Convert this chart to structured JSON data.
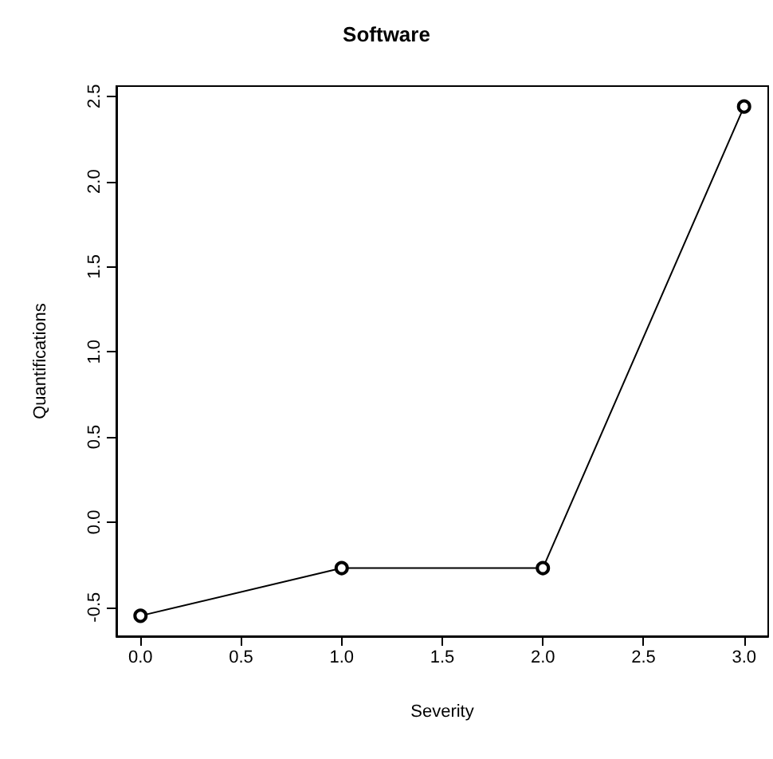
{
  "chart_data": {
    "type": "line",
    "title": "Software",
    "xlabel": "Severity",
    "ylabel": "Quantifications",
    "x": [
      0,
      1,
      2,
      3
    ],
    "series": [
      {
        "color": "#000000",
        "values": [
          -0.55,
          -0.27,
          -0.27,
          2.44
        ]
      }
    ],
    "xlim": [
      -0.12,
      3.12
    ],
    "xticks": [
      {
        "value": 0,
        "label": "0.0"
      },
      {
        "value": 0.5,
        "label": "0.5"
      },
      {
        "value": 1,
        "label": "1.0"
      },
      {
        "value": 1.5,
        "label": "1.5"
      },
      {
        "value": 2,
        "label": "2.0"
      },
      {
        "value": 2.5,
        "label": "2.5"
      },
      {
        "value": 3,
        "label": "3.0"
      }
    ],
    "ylim": [
      -0.67,
      2.56
    ],
    "yticks": [
      {
        "value": -0.5,
        "label": "-0.5"
      },
      {
        "value": 0,
        "label": "0.0"
      },
      {
        "value": 0.5,
        "label": "0.5"
      },
      {
        "value": 1,
        "label": "1.0"
      },
      {
        "value": 1.5,
        "label": "1.5"
      },
      {
        "value": 2,
        "label": "2.0"
      },
      {
        "value": 2.5,
        "label": "2.5"
      }
    ],
    "marker": "circle",
    "line_style": "solid"
  }
}
